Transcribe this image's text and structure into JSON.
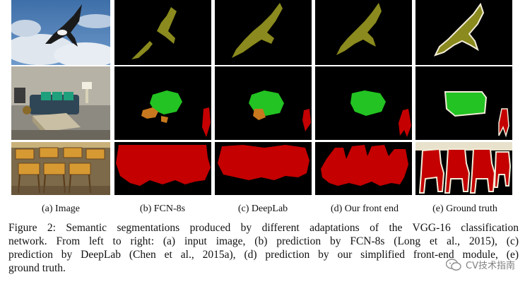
{
  "figure": {
    "columns": [
      {
        "key": "image",
        "label": "(a) Image"
      },
      {
        "key": "fcn",
        "label": "(b) FCN-8s"
      },
      {
        "key": "deeplab",
        "label": "(c) DeepLab"
      },
      {
        "key": "frontend",
        "label": "(d) Our front end"
      },
      {
        "key": "gt",
        "label": "(e) Ground truth"
      }
    ],
    "colors": {
      "background": "#000000",
      "bird": "#8a8a1e",
      "sofa": "#22c322",
      "chair": "#c40000",
      "pottedplant": "#c8781e",
      "boundary": "#f2ecd8"
    }
  },
  "caption": {
    "lines": [
      "Figure 2:  Semantic segmentations produced by different adaptations of the VGG-16 classification",
      "network.  From left to right: (a) input image, (b) prediction by FCN-8s (Long et al., 2015), (c)",
      "prediction by DeepLab (Chen et al., 2015a), (d) prediction by our simplified front-end module, (e)",
      "ground truth."
    ]
  },
  "watermark": {
    "icon": "wechat-icon",
    "text": "CV技术指南"
  }
}
